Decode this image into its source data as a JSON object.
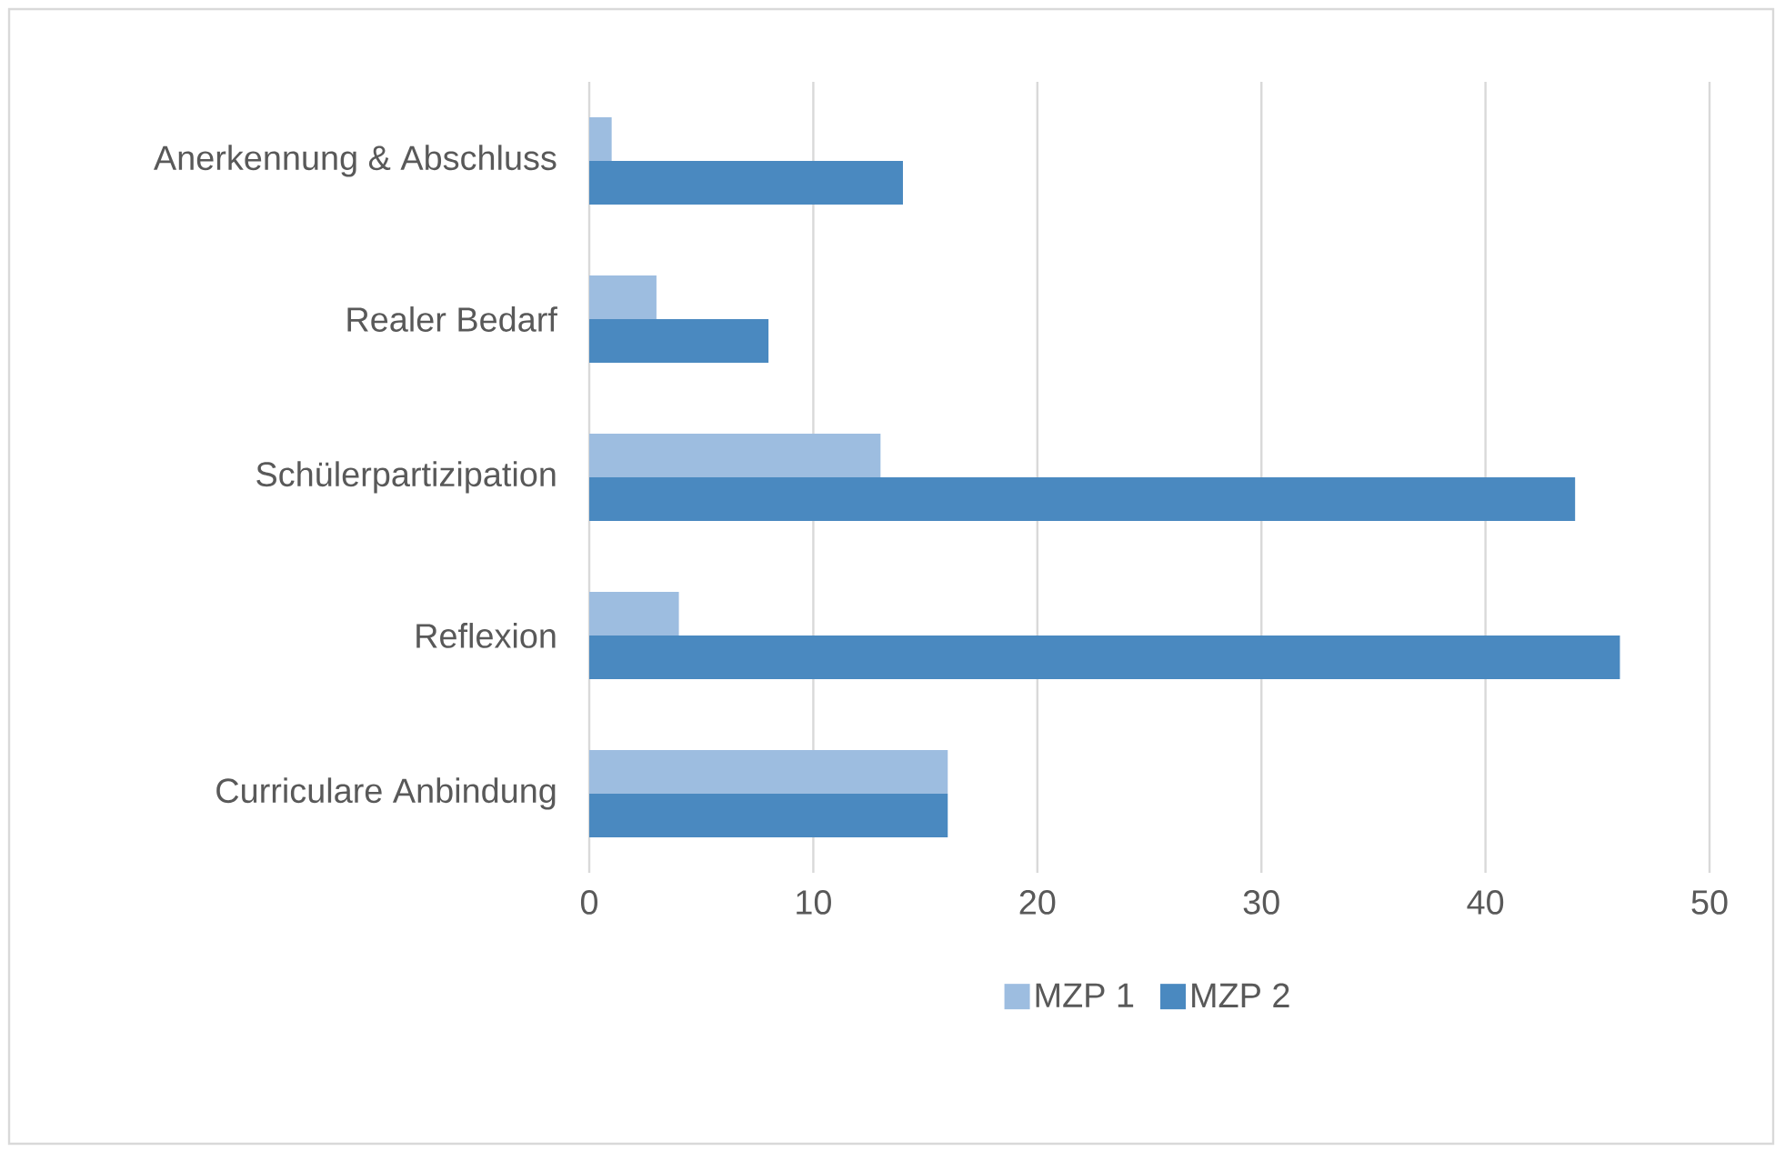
{
  "chart_data": {
    "type": "bar",
    "orientation": "horizontal",
    "categories": [
      "Anerkennung & Abschluss",
      "Realer Bedarf",
      "Schülerpartizipation",
      "Reflexion",
      "Curriculare Anbindung"
    ],
    "series": [
      {
        "name": "MZP 1",
        "color": "#9dbde0",
        "values": [
          1,
          3,
          13,
          4,
          16
        ]
      },
      {
        "name": "MZP 2",
        "color": "#4a89c0",
        "values": [
          14,
          8,
          44,
          46,
          16
        ]
      }
    ],
    "xlim": [
      0,
      50
    ],
    "xticks": [
      0,
      10,
      20,
      30,
      40,
      50
    ],
    "grid": "x",
    "legend": "bottom"
  }
}
